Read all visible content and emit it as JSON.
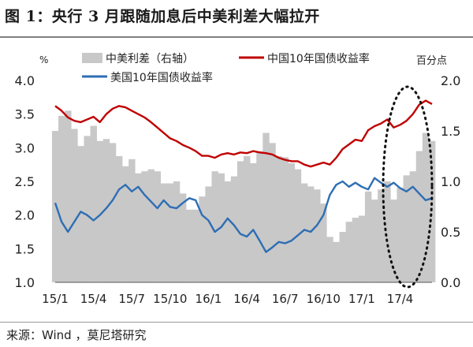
{
  "title": "图 1：央行 3 月跟随加息后中美利差大幅拉开",
  "source": "来源：Wind ，莫尼塔研究",
  "colors": {
    "spread": "#c8c8c8",
    "china": "#c00000",
    "us": "#2e6eb4",
    "text": "#222222"
  },
  "chart_data": {
    "type": "line",
    "left_unit": "%",
    "right_unit": "百分点",
    "left_ticks": [
      "4.0",
      "3.5",
      "3.0",
      "2.5",
      "2.0",
      "1.5",
      "1.0"
    ],
    "right_ticks": [
      "2.0",
      "1.5",
      "1.0",
      "0.5",
      "0.0"
    ],
    "left_ylim": [
      1.0,
      4.0
    ],
    "right_ylim": [
      0.0,
      2.0
    ],
    "categories": [
      "15/1",
      "15/4",
      "15/7",
      "15/10",
      "16/1",
      "16/4",
      "16/7",
      "16/10",
      "17/1",
      "17/4"
    ],
    "x_range": [
      0,
      29.5
    ],
    "legend": [
      "中美利差（右轴）",
      "中国10年国债收益率",
      "美国10年国债收益率"
    ],
    "legend_placement": "top",
    "annotation": "dotted ellipse highlighting 2017-03 to 2017-05 widening spread",
    "series": [
      {
        "name": "中国10年国债收益率",
        "axis": "left",
        "x": [
          0,
          0.5,
          1,
          1.5,
          2,
          2.5,
          3,
          3.5,
          4,
          4.5,
          5,
          5.5,
          6,
          6.5,
          7,
          7.5,
          8,
          8.5,
          9,
          9.5,
          10,
          10.5,
          11,
          11.5,
          12,
          12.5,
          13,
          13.5,
          14,
          14.5,
          15,
          15.5,
          16,
          16.5,
          17,
          17.5,
          18,
          18.5,
          19,
          19.5,
          20,
          20.5,
          21,
          21.5,
          22,
          22.5,
          23,
          23.5,
          24,
          24.5,
          25,
          25.5,
          26,
          26.5,
          27,
          27.5,
          28,
          28.5,
          29,
          29.5
        ],
        "values": [
          3.62,
          3.55,
          3.45,
          3.4,
          3.38,
          3.42,
          3.46,
          3.38,
          3.5,
          3.58,
          3.62,
          3.6,
          3.55,
          3.5,
          3.45,
          3.38,
          3.3,
          3.22,
          3.14,
          3.1,
          3.04,
          3.0,
          2.95,
          2.88,
          2.88,
          2.85,
          2.9,
          2.92,
          2.9,
          2.93,
          2.92,
          2.95,
          2.93,
          2.92,
          2.9,
          2.85,
          2.82,
          2.8,
          2.8,
          2.75,
          2.72,
          2.75,
          2.78,
          2.75,
          2.85,
          2.98,
          3.05,
          3.12,
          3.1,
          3.26,
          3.32,
          3.36,
          3.42,
          3.3,
          3.34,
          3.4,
          3.5,
          3.64,
          3.7,
          3.65
        ]
      },
      {
        "name": "美国10年国债收益率",
        "axis": "left",
        "x": [
          0,
          0.5,
          1,
          1.5,
          2,
          2.5,
          3,
          3.5,
          4,
          4.5,
          5,
          5.5,
          6,
          6.5,
          7,
          7.5,
          8,
          8.5,
          9,
          9.5,
          10,
          10.5,
          11,
          11.5,
          12,
          12.5,
          13,
          13.5,
          14,
          14.5,
          15,
          15.5,
          16,
          16.5,
          17,
          17.5,
          18,
          18.5,
          19,
          19.5,
          20,
          20.5,
          21,
          21.5,
          22,
          22.5,
          23,
          23.5,
          24,
          24.5,
          25,
          25.5,
          26,
          26.5,
          27,
          27.5,
          28,
          28.5,
          29,
          29.5
        ],
        "values": [
          2.18,
          1.9,
          1.75,
          1.9,
          2.05,
          2.0,
          1.92,
          2.0,
          2.1,
          2.22,
          2.38,
          2.45,
          2.35,
          2.42,
          2.3,
          2.2,
          2.1,
          2.22,
          2.12,
          2.1,
          2.18,
          2.25,
          2.22,
          2.0,
          1.92,
          1.75,
          1.82,
          1.95,
          1.85,
          1.72,
          1.68,
          1.78,
          1.62,
          1.45,
          1.52,
          1.6,
          1.58,
          1.62,
          1.7,
          1.78,
          1.75,
          1.85,
          2.0,
          2.3,
          2.45,
          2.5,
          2.42,
          2.48,
          2.42,
          2.38,
          2.55,
          2.48,
          2.42,
          2.48,
          2.4,
          2.35,
          2.42,
          2.32,
          2.22,
          2.25
        ]
      },
      {
        "name": "中美利差（右轴）",
        "axis": "right",
        "x": [
          0,
          0.5,
          1,
          1.5,
          2,
          2.5,
          3,
          3.5,
          4,
          4.5,
          5,
          5.5,
          6,
          6.5,
          7,
          7.5,
          8,
          8.5,
          9,
          9.5,
          10,
          10.5,
          11,
          11.5,
          12,
          12.5,
          13,
          13.5,
          14,
          14.5,
          15,
          15.5,
          16,
          16.5,
          17,
          17.5,
          18,
          18.5,
          19,
          19.5,
          20,
          20.5,
          21,
          21.5,
          22,
          22.5,
          23,
          23.5,
          24,
          24.5,
          25,
          25.5,
          26,
          26.5,
          27,
          27.5,
          28,
          28.5,
          29,
          29.5
        ],
        "values": [
          1.5,
          1.65,
          1.7,
          1.52,
          1.35,
          1.45,
          1.55,
          1.4,
          1.42,
          1.38,
          1.25,
          1.15,
          1.22,
          1.08,
          1.1,
          1.12,
          1.1,
          0.98,
          0.98,
          1.0,
          0.88,
          0.72,
          0.72,
          0.85,
          0.95,
          1.1,
          1.08,
          1.0,
          1.05,
          1.2,
          1.25,
          1.18,
          1.3,
          1.48,
          1.38,
          1.25,
          1.24,
          1.18,
          1.12,
          0.98,
          0.95,
          0.92,
          0.78,
          0.45,
          0.4,
          0.5,
          0.6,
          0.64,
          0.66,
          0.9,
          0.82,
          0.92,
          1.0,
          0.82,
          0.94,
          1.06,
          1.1,
          1.3,
          1.48,
          1.4
        ]
      }
    ]
  }
}
